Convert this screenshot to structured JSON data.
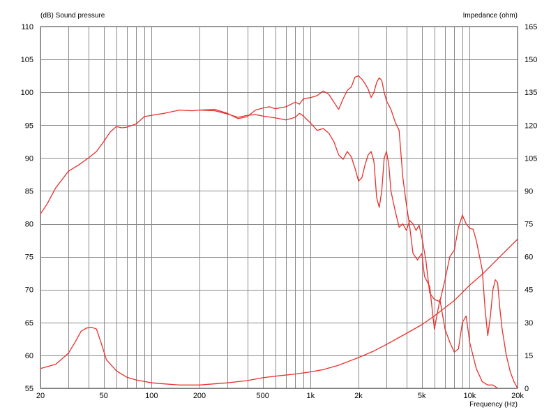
{
  "chart_data": {
    "type": "line",
    "y_label": "(dB)  Sound pressure",
    "y2_label": "Impedance  (ohm)",
    "x_label": "Frequency  (Hz)",
    "x_scale": "log",
    "xlim": [
      20,
      20000
    ],
    "ylim": [
      55,
      110
    ],
    "y2lim": [
      0,
      165
    ],
    "grid": true,
    "x_ticks": [
      {
        "value": 20,
        "label": "20"
      },
      {
        "value": 50,
        "label": "50"
      },
      {
        "value": 100,
        "label": "100"
      },
      {
        "value": 200,
        "label": "200"
      },
      {
        "value": 500,
        "label": "500"
      },
      {
        "value": 1000,
        "label": "1k"
      },
      {
        "value": 2000,
        "label": "2k"
      },
      {
        "value": 5000,
        "label": "5k"
      },
      {
        "value": 10000,
        "label": "10k"
      },
      {
        "value": 20000,
        "label": "20k"
      }
    ],
    "y_ticks": [
      "55",
      "60",
      "65",
      "70",
      "75",
      "80",
      "85",
      "90",
      "95",
      "100",
      "105",
      "110"
    ],
    "y2_ticks": [
      "0",
      "15",
      "30",
      "45",
      "60",
      "75",
      "90",
      "105",
      "120",
      "135",
      "150",
      "165"
    ],
    "series": [
      {
        "axis": "left",
        "color": "#e8302c",
        "points": [
          [
            20,
            81.5
          ],
          [
            22,
            83
          ],
          [
            25,
            85.5
          ],
          [
            30,
            88
          ],
          [
            35,
            89
          ],
          [
            40,
            90
          ],
          [
            45,
            91
          ],
          [
            50,
            92.5
          ],
          [
            55,
            94
          ],
          [
            60,
            94.8
          ],
          [
            65,
            94.6
          ],
          [
            70,
            94.7
          ],
          [
            80,
            95.2
          ],
          [
            90,
            96.3
          ],
          [
            100,
            96.5
          ],
          [
            120,
            96.8
          ],
          [
            150,
            97.3
          ],
          [
            180,
            97.2
          ],
          [
            200,
            97.3
          ],
          [
            250,
            97.4
          ],
          [
            300,
            96.8
          ],
          [
            350,
            96
          ],
          [
            400,
            96.3
          ],
          [
            450,
            97.3
          ],
          [
            500,
            97.6
          ],
          [
            550,
            97.8
          ],
          [
            600,
            97.5
          ],
          [
            700,
            97.8
          ],
          [
            800,
            98.5
          ],
          [
            850,
            98.2
          ],
          [
            900,
            99
          ],
          [
            1000,
            99.2
          ],
          [
            1100,
            99.5
          ],
          [
            1200,
            100.2
          ],
          [
            1300,
            99.7
          ],
          [
            1400,
            98.5
          ],
          [
            1500,
            97.4
          ],
          [
            1600,
            99
          ],
          [
            1700,
            100.3
          ],
          [
            1800,
            100.8
          ],
          [
            1900,
            102.3
          ],
          [
            2000,
            102.5
          ],
          [
            2100,
            102
          ],
          [
            2200,
            101.3
          ],
          [
            2300,
            100.5
          ],
          [
            2400,
            99.2
          ],
          [
            2500,
            100
          ],
          [
            2600,
            101.5
          ],
          [
            2700,
            102.2
          ],
          [
            2800,
            101.8
          ],
          [
            2900,
            100
          ],
          [
            3000,
            98.7
          ],
          [
            3200,
            97.4
          ],
          [
            3400,
            95.5
          ],
          [
            3600,
            94.2
          ],
          [
            3800,
            87
          ],
          [
            4000,
            83
          ],
          [
            4200,
            79.5
          ],
          [
            4400,
            75.5
          ],
          [
            4700,
            74.5
          ],
          [
            5000,
            75.5
          ],
          [
            5200,
            72
          ],
          [
            5600,
            70.5
          ],
          [
            6000,
            64
          ],
          [
            6500,
            68.5
          ],
          [
            7000,
            64
          ],
          [
            7500,
            62
          ],
          [
            8000,
            60.5
          ],
          [
            8500,
            61
          ],
          [
            9000,
            65
          ],
          [
            9500,
            66
          ],
          [
            10000,
            62
          ],
          [
            11000,
            58
          ],
          [
            12000,
            56
          ],
          [
            13000,
            55.5
          ],
          [
            14000,
            55.5
          ],
          [
            15000,
            55
          ]
        ]
      },
      {
        "axis": "left",
        "color": "#e8302c",
        "points": [
          [
            200,
            97.3
          ],
          [
            250,
            97.2
          ],
          [
            300,
            96.7
          ],
          [
            350,
            96.2
          ],
          [
            400,
            96.5
          ],
          [
            450,
            96.6
          ],
          [
            500,
            96.4
          ],
          [
            600,
            96.1
          ],
          [
            700,
            95.8
          ],
          [
            800,
            96.2
          ],
          [
            850,
            96.8
          ],
          [
            900,
            96.4
          ],
          [
            1000,
            95.3
          ],
          [
            1100,
            94.2
          ],
          [
            1200,
            94.5
          ],
          [
            1300,
            93.8
          ],
          [
            1400,
            92.5
          ],
          [
            1500,
            90.5
          ],
          [
            1600,
            89.8
          ],
          [
            1700,
            91
          ],
          [
            1800,
            90.2
          ],
          [
            1900,
            88.5
          ],
          [
            2000,
            86.5
          ],
          [
            2100,
            87
          ],
          [
            2200,
            89
          ],
          [
            2300,
            90.5
          ],
          [
            2400,
            91
          ],
          [
            2500,
            89.5
          ],
          [
            2600,
            84
          ],
          [
            2700,
            82.5
          ],
          [
            2800,
            85
          ],
          [
            2900,
            90
          ],
          [
            3000,
            91
          ],
          [
            3100,
            89
          ],
          [
            3200,
            85
          ],
          [
            3400,
            82
          ],
          [
            3600,
            79.5
          ],
          [
            3800,
            80
          ],
          [
            4000,
            79
          ],
          [
            4200,
            80.5
          ],
          [
            4400,
            80
          ],
          [
            4600,
            79
          ],
          [
            4800,
            79.8
          ],
          [
            5000,
            78
          ],
          [
            5300,
            74.5
          ],
          [
            5600,
            69.5
          ],
          [
            6000,
            68.5
          ],
          [
            6500,
            68.2
          ],
          [
            7000,
            71.5
          ],
          [
            7500,
            75
          ],
          [
            8000,
            76
          ],
          [
            8500,
            79.5
          ],
          [
            9000,
            81.3
          ],
          [
            9500,
            80
          ],
          [
            10000,
            79.3
          ],
          [
            10500,
            79.2
          ],
          [
            11000,
            77.5
          ],
          [
            12000,
            73
          ],
          [
            12500,
            67
          ],
          [
            13000,
            63
          ],
          [
            13500,
            66
          ],
          [
            14000,
            70
          ],
          [
            14500,
            71.5
          ],
          [
            15000,
            71
          ],
          [
            15500,
            67
          ],
          [
            16000,
            64
          ],
          [
            17000,
            60
          ],
          [
            18000,
            57.5
          ],
          [
            19000,
            56
          ],
          [
            20000,
            55
          ]
        ]
      },
      {
        "axis": "right",
        "color": "#e8302c",
        "points": [
          [
            20,
            9
          ],
          [
            25,
            11
          ],
          [
            30,
            16
          ],
          [
            33,
            21
          ],
          [
            36,
            26
          ],
          [
            39,
            27.5
          ],
          [
            42,
            27.8
          ],
          [
            45,
            27
          ],
          [
            48,
            21
          ],
          [
            52,
            13
          ],
          [
            60,
            8
          ],
          [
            70,
            5
          ],
          [
            80,
            3.8
          ],
          [
            100,
            2.5
          ],
          [
            120,
            2
          ],
          [
            150,
            1.5
          ],
          [
            200,
            1.5
          ],
          [
            300,
            2.5
          ],
          [
            400,
            3.5
          ],
          [
            500,
            4.8
          ],
          [
            600,
            5.5
          ],
          [
            800,
            6.5
          ],
          [
            1000,
            7.5
          ],
          [
            1200,
            8.5
          ],
          [
            1500,
            10.5
          ],
          [
            2000,
            14
          ],
          [
            2500,
            17
          ],
          [
            3000,
            20
          ],
          [
            4000,
            25
          ],
          [
            5000,
            29
          ],
          [
            6000,
            33
          ],
          [
            8000,
            40
          ],
          [
            10000,
            47
          ],
          [
            12000,
            52
          ],
          [
            15000,
            59
          ],
          [
            20000,
            68
          ]
        ]
      }
    ]
  }
}
